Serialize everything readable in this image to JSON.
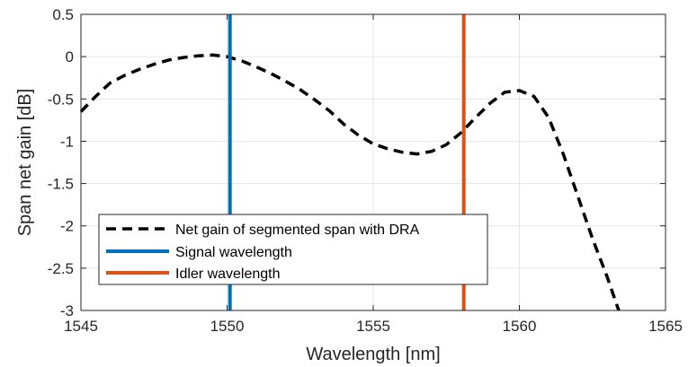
{
  "chart_data": {
    "type": "line",
    "xlabel": "Wavelength [nm]",
    "ylabel": "Span net gain [dB]",
    "xlim": [
      1545,
      1565
    ],
    "ylim": [
      -3,
      0.5
    ],
    "xticks": [
      1545,
      1550,
      1555,
      1560,
      1565
    ],
    "yticks": [
      0.5,
      0,
      -0.5,
      -1,
      -1.5,
      -2,
      -2.5,
      -3
    ],
    "xtick_labels": [
      "1545",
      "1550",
      "1555",
      "1560",
      "1565"
    ],
    "ytick_labels": [
      "0.5",
      "0",
      "-0.5",
      "-1",
      "-1.5",
      "-2",
      "-2.5",
      "-3"
    ],
    "grid": true,
    "legend_position": "lower-left",
    "series": [
      {
        "name": "Net gain of segmented span with DRA",
        "style": "dashed",
        "color": "#000000",
        "x": [
          1545,
          1545.5,
          1546,
          1546.5,
          1547,
          1547.5,
          1548,
          1548.5,
          1549,
          1549.5,
          1550,
          1550.5,
          1551,
          1551.5,
          1552,
          1552.5,
          1553,
          1553.5,
          1554,
          1554.5,
          1555,
          1555.5,
          1556,
          1556.5,
          1557,
          1557.5,
          1558,
          1558.5,
          1559,
          1559.5,
          1560,
          1560.5,
          1561,
          1561.5,
          1562,
          1562.5,
          1563,
          1563.4
        ],
        "y": [
          -0.65,
          -0.47,
          -0.31,
          -0.22,
          -0.15,
          -0.09,
          -0.04,
          -0.01,
          0.01,
          0.02,
          0.0,
          -0.05,
          -0.12,
          -0.2,
          -0.29,
          -0.39,
          -0.51,
          -0.64,
          -0.8,
          -0.93,
          -1.03,
          -1.09,
          -1.13,
          -1.15,
          -1.12,
          -1.04,
          -0.9,
          -0.72,
          -0.55,
          -0.42,
          -0.4,
          -0.47,
          -0.72,
          -1.15,
          -1.65,
          -2.15,
          -2.6,
          -3.0
        ]
      },
      {
        "name": "Signal wavelength",
        "style": "solid",
        "color": "#0072BD",
        "x": [
          1550.1,
          1550.1
        ],
        "y": [
          -3,
          0.5
        ]
      },
      {
        "name": "Idler wavelength",
        "style": "solid",
        "color": "#D95319",
        "x": [
          1558.1,
          1558.1
        ],
        "y": [
          -3,
          0.5
        ]
      }
    ]
  }
}
